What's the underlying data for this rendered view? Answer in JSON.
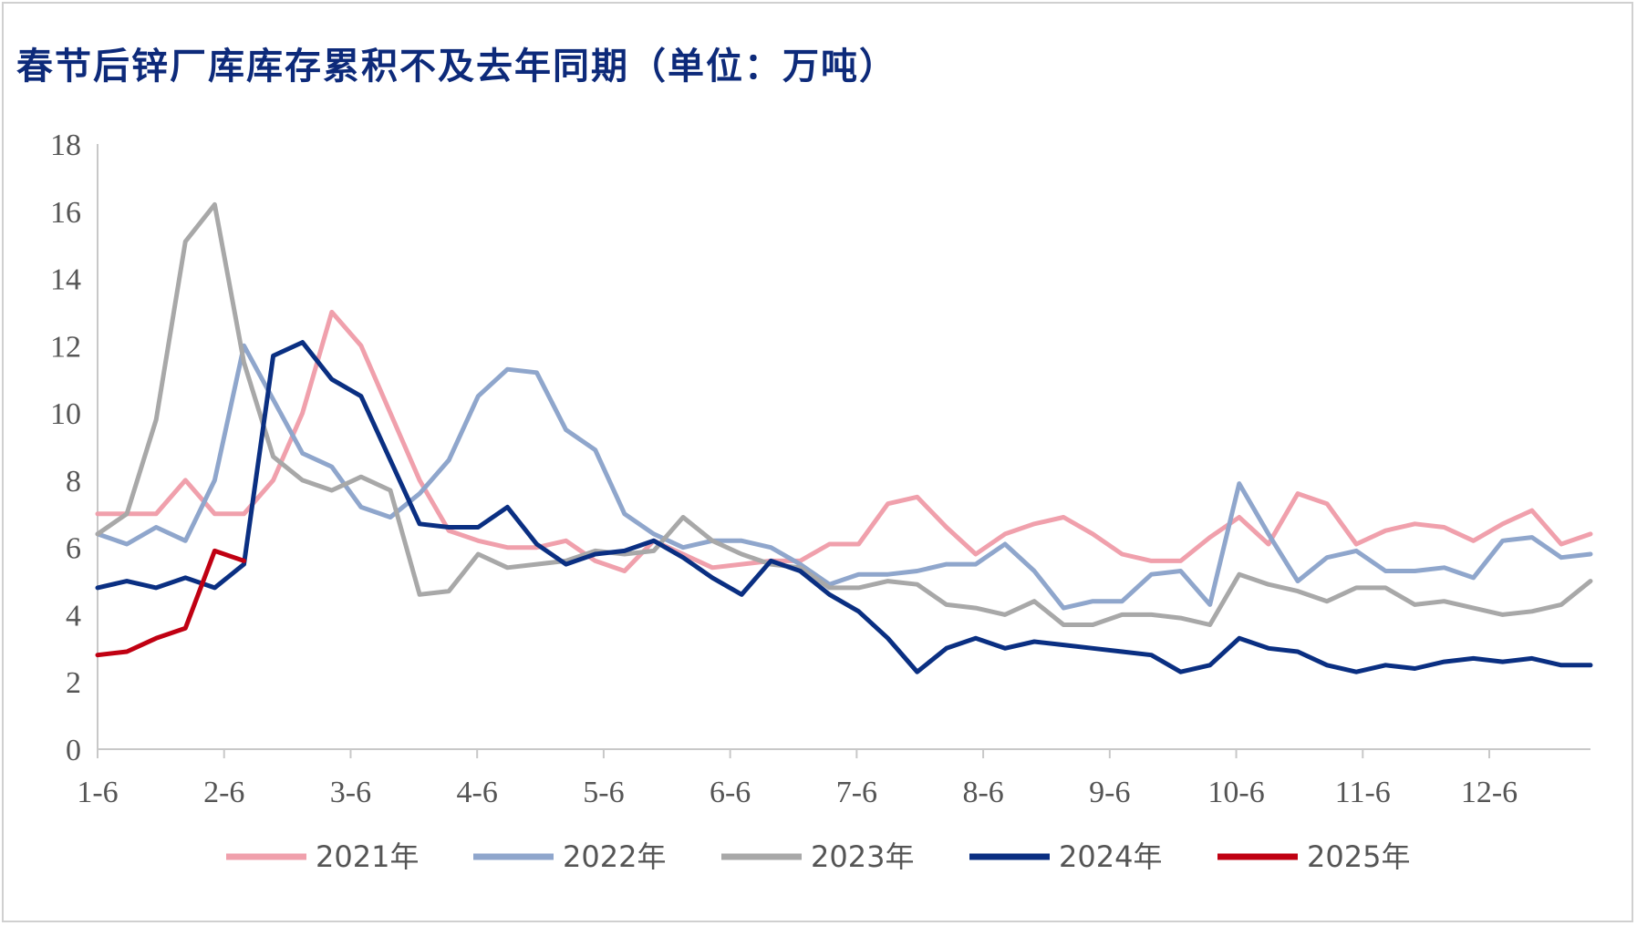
{
  "title": "春节后锌厂库库存累积不及去年同期（单位：万吨）",
  "chart_data": {
    "type": "line",
    "title": "春节后锌厂库库存累积不及去年同期（单位：万吨）",
    "xlabel": "",
    "ylabel": "",
    "ylim": [
      0,
      18
    ],
    "yticks": [
      "0",
      "2",
      "4",
      "6",
      "8",
      "10",
      "12",
      "14",
      "16",
      "18"
    ],
    "xticks": [
      "1-6",
      "2-6",
      "3-6",
      "4-6",
      "5-6",
      "6-6",
      "7-6",
      "8-6",
      "9-6",
      "10-6",
      "11-6",
      "12-6"
    ],
    "grid": false,
    "legend": "bottom",
    "series": [
      {
        "name": "2021年",
        "color": "#f0a0ac",
        "values": [
          7.0,
          7.0,
          7.0,
          8.0,
          7.0,
          7.0,
          8.0,
          10.0,
          13.0,
          12.0,
          10.0,
          8.0,
          6.5,
          6.2,
          6.0,
          6.0,
          6.2,
          5.6,
          5.3,
          6.2,
          5.8,
          5.4,
          5.5,
          5.6,
          5.6,
          6.1,
          6.1,
          7.3,
          7.5,
          6.6,
          5.8,
          6.4,
          6.7,
          6.9,
          6.4,
          5.8,
          5.6,
          5.6,
          6.3,
          6.9,
          6.1,
          7.6,
          7.3,
          6.1,
          6.5,
          6.7,
          6.6,
          6.2,
          6.7,
          7.1,
          6.1,
          6.4
        ]
      },
      {
        "name": "2022年",
        "color": "#8fa6cc",
        "values": [
          6.4,
          6.1,
          6.6,
          6.2,
          8.0,
          12.0,
          10.4,
          8.8,
          8.4,
          7.2,
          6.9,
          7.6,
          8.6,
          10.5,
          11.3,
          11.2,
          9.5,
          8.9,
          7.0,
          6.4,
          6.0,
          6.2,
          6.2,
          6.0,
          5.5,
          4.9,
          5.2,
          5.2,
          5.3,
          5.5,
          5.5,
          6.1,
          5.3,
          4.2,
          4.4,
          4.4,
          5.2,
          5.3,
          4.3,
          7.9,
          6.4,
          5.0,
          5.7,
          5.9,
          5.3,
          5.3,
          5.4,
          5.1,
          6.2,
          6.3,
          5.7,
          5.8
        ]
      },
      {
        "name": "2023年",
        "color": "#a8a8a8",
        "values": [
          6.4,
          7.0,
          9.8,
          15.1,
          16.2,
          11.5,
          8.7,
          8.0,
          7.7,
          8.1,
          7.7,
          4.6,
          4.7,
          5.8,
          5.4,
          5.5,
          5.6,
          5.9,
          5.8,
          5.9,
          6.9,
          6.2,
          5.8,
          5.5,
          5.4,
          4.8,
          4.8,
          5.0,
          4.9,
          4.3,
          4.2,
          4.0,
          4.4,
          3.7,
          3.7,
          4.0,
          4.0,
          3.9,
          3.7,
          5.2,
          4.9,
          4.7,
          4.4,
          4.8,
          4.8,
          4.3,
          4.4,
          4.2,
          4.0,
          4.1,
          4.3,
          5.0
        ]
      },
      {
        "name": "2024年",
        "color": "#0a2f82",
        "values": [
          4.8,
          5.0,
          4.8,
          5.1,
          4.8,
          5.5,
          11.7,
          12.1,
          11.0,
          10.5,
          8.6,
          6.7,
          6.6,
          6.6,
          7.2,
          6.1,
          5.5,
          5.8,
          5.9,
          6.2,
          5.7,
          5.1,
          4.6,
          5.6,
          5.3,
          4.6,
          4.1,
          3.3,
          2.3,
          3.0,
          3.3,
          3.0,
          3.2,
          3.1,
          3.0,
          2.9,
          2.8,
          2.3,
          2.5,
          3.3,
          3.0,
          2.9,
          2.5,
          2.3,
          2.5,
          2.4,
          2.6,
          2.7,
          2.6,
          2.7,
          2.5,
          2.5
        ]
      },
      {
        "name": "2025年",
        "color": "#c00012",
        "values": [
          2.8,
          2.9,
          3.3,
          3.6,
          5.9,
          5.6
        ]
      }
    ]
  }
}
